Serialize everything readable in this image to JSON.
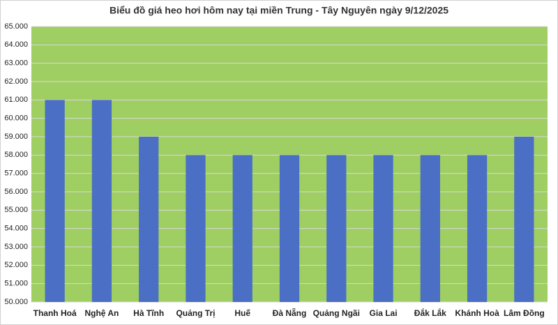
{
  "chart_data": {
    "type": "bar",
    "title": "Biểu đồ giá heo hơi hôm nay tại miền Trung - Tây Nguyên ngày 9/12/2025",
    "categories": [
      "Thanh Hoá",
      "Nghệ An",
      "Hà Tĩnh",
      "Quảng Trị",
      "Huế",
      "Đà Nẵng",
      "Quảng Ngãi",
      "Gia Lai",
      "Đắk Lắk",
      "Khánh Hoà",
      "Lâm Đồng"
    ],
    "values": [
      61000,
      61000,
      59000,
      58000,
      58000,
      58000,
      58000,
      58000,
      58000,
      58000,
      59000
    ],
    "color": "#4a6fc4",
    "plot_background": "#9fce63",
    "ylim": [
      50000,
      65000
    ],
    "yticks": [
      {
        "value": 50000,
        "label": "50.000"
      },
      {
        "value": 51000,
        "label": "51.000"
      },
      {
        "value": 52000,
        "label": "52.000"
      },
      {
        "value": 53000,
        "label": "53.000"
      },
      {
        "value": 54000,
        "label": "54.000"
      },
      {
        "value": 55000,
        "label": "55.000"
      },
      {
        "value": 56000,
        "label": "56.000"
      },
      {
        "value": 57000,
        "label": "57.000"
      },
      {
        "value": 58000,
        "label": "58.000"
      },
      {
        "value": 59000,
        "label": "59.000"
      },
      {
        "value": 60000,
        "label": "60.000"
      },
      {
        "value": 61000,
        "label": "61.000"
      },
      {
        "value": 62000,
        "label": "62.000"
      },
      {
        "value": 63000,
        "label": "63.000"
      },
      {
        "value": 64000,
        "label": "64.000"
      },
      {
        "value": 65000,
        "label": "65.000"
      }
    ],
    "grid": true
  }
}
